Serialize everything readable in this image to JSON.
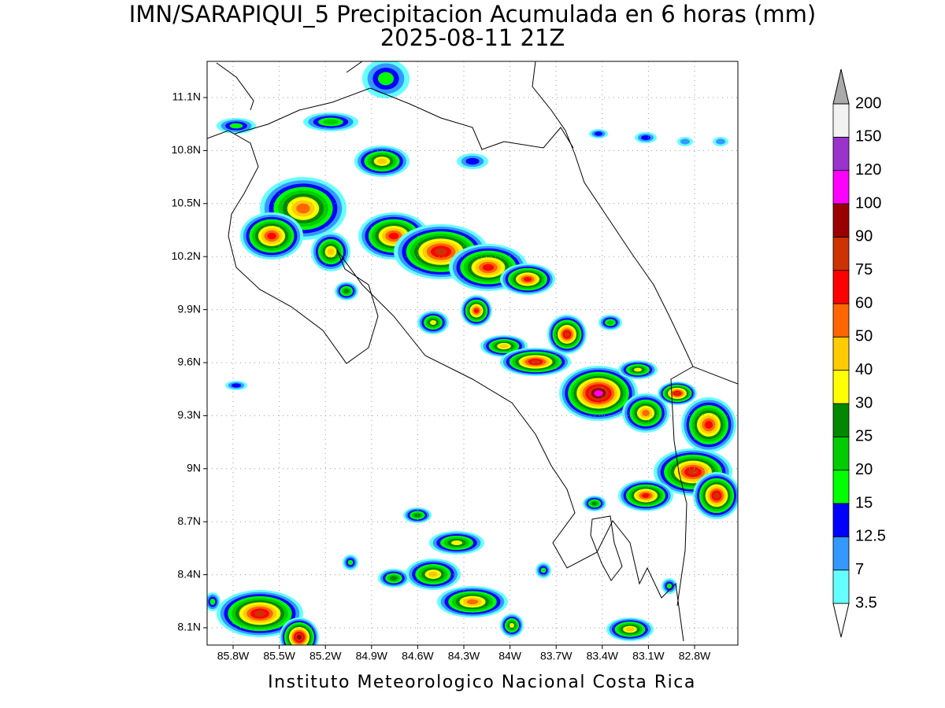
{
  "title": "IMN/SARAPIQUI_5 Precipitacion Acumulada en 6 horas (mm)",
  "subtitle": "2025-08-11 21Z",
  "map": {
    "lon_ticks": [
      "85.8W",
      "85.5W",
      "85.2W",
      "84.9W",
      "84.6W",
      "84.3W",
      "84W",
      "83.7W",
      "83.4W",
      "83.1W",
      "82.8W"
    ],
    "lat_ticks": [
      "11.1N",
      "10.8N",
      "10.5N",
      "10.2N",
      "9.9N",
      "9.6N",
      "9.3N",
      "9N",
      "8.7N",
      "8.4N",
      "8.1N"
    ]
  },
  "colorbar": {
    "levels": [
      3.5,
      7,
      12.5,
      15,
      20,
      25,
      30,
      40,
      50,
      60,
      75,
      90,
      100,
      120,
      150,
      200
    ],
    "under_color": "#ffffff",
    "colors": [
      "#66ffff",
      "#3399ff",
      "#0000ff",
      "#00ff00",
      "#00cc00",
      "#008800",
      "#ffff00",
      "#ffcc00",
      "#ff6600",
      "#ff0000",
      "#cc3300",
      "#990000",
      "#ff00ff",
      "#9933cc",
      "#f2f2f2"
    ],
    "over_color": "#aaaaaa"
  },
  "footer": "Instituto Meteorologico Nacional Costa Rica"
}
